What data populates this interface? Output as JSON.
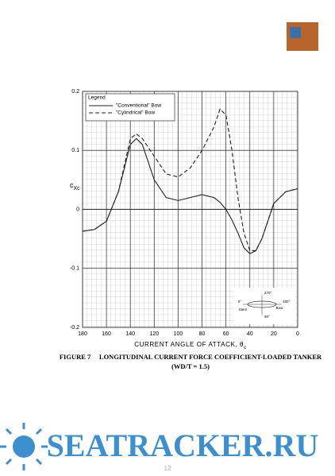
{
  "chart_data": {
    "type": "line",
    "y_label": "c",
    "y_label_sub": "Xc",
    "x_label": "CURRENT ANGLE OF ATTACK, θ",
    "x_label_sub": "c",
    "legend_title": "Legend",
    "x": [
      180,
      170,
      160,
      150,
      145,
      140,
      135,
      130,
      125,
      120,
      110,
      100,
      90,
      80,
      70,
      65,
      60,
      55,
      50,
      45,
      40,
      35,
      30,
      20,
      10,
      0
    ],
    "series": [
      {
        "name": "\"Conventional\" Bow",
        "color": "#222222",
        "dash": "solid",
        "values": [
          -0.037,
          -0.034,
          -0.02,
          0.03,
          0.07,
          0.11,
          0.12,
          0.11,
          0.08,
          0.05,
          0.02,
          0.015,
          0.02,
          0.025,
          0.02,
          0.012,
          0.0,
          -0.018,
          -0.04,
          -0.065,
          -0.075,
          -0.07,
          -0.05,
          0.01,
          0.03,
          0.035
        ]
      },
      {
        "name": "\"Cylindrical\" Bow",
        "color": "#222222",
        "dash": "dashed",
        "values": [
          -0.037,
          -0.034,
          -0.02,
          0.03,
          0.075,
          0.12,
          0.128,
          0.12,
          0.105,
          0.09,
          0.06,
          0.055,
          0.07,
          0.1,
          0.14,
          0.17,
          0.16,
          0.1,
          0.02,
          -0.04,
          -0.07,
          -0.07,
          -0.05,
          0.01,
          0.03,
          0.035
        ]
      }
    ],
    "xlim": [
      180,
      0
    ],
    "xticks": [
      180,
      160,
      140,
      120,
      100,
      80,
      60,
      40,
      20,
      0
    ],
    "ylim": [
      -0.2,
      0.2
    ],
    "yticks": [
      -0.2,
      -0.1,
      0,
      0.1,
      0.2
    ],
    "grid": true,
    "inset_labels": [
      "270°",
      "0°",
      "180°",
      "Stern",
      "Bow",
      "90°"
    ]
  },
  "caption": {
    "line1": "FIGURE 7     LONGITUDINAL CURRENT FORCE COEFFICIENT-LOADED TANKER",
    "line2": "(WD/T = 1.5)"
  },
  "watermark": "SEATRACKER.RU",
  "page_number": "12"
}
